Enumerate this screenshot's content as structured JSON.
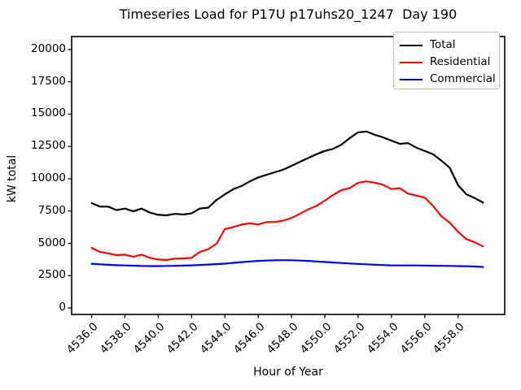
{
  "title": "Timeseries Load for P17U p17uhs20_1247  Day 190",
  "xlabel": "Hour of Year",
  "ylabel": "kW total",
  "legend": {
    "position": "upper right",
    "items": [
      {
        "label": "Total",
        "color": "#000000"
      },
      {
        "label": "Residential",
        "color": "#ff0000"
      },
      {
        "label": "Commercial",
        "color": "#0000ff"
      }
    ]
  },
  "chart_data": {
    "type": "line",
    "title": "Timeseries Load for P17U p17uhs20_1247  Day 190",
    "xlabel": "Hour of Year",
    "ylabel": "kW total",
    "grid": false,
    "legend_position": "upper right",
    "xlim": [
      4534.8,
      4560.8
    ],
    "ylim": [
      -500,
      21000
    ],
    "xticks": [
      {
        "value": 4536,
        "label": "4536.0"
      },
      {
        "value": 4538,
        "label": "4538.0"
      },
      {
        "value": 4540,
        "label": "4540.0"
      },
      {
        "value": 4542,
        "label": "4542.0"
      },
      {
        "value": 4544,
        "label": "4544.0"
      },
      {
        "value": 4546,
        "label": "4546.0"
      },
      {
        "value": 4548,
        "label": "4548.0"
      },
      {
        "value": 4550,
        "label": "4550.0"
      },
      {
        "value": 4552,
        "label": "4552.0"
      },
      {
        "value": 4554,
        "label": "4554.0"
      },
      {
        "value": 4556,
        "label": "4556.0"
      },
      {
        "value": 4558,
        "label": "4558.0"
      }
    ],
    "yticks": [
      {
        "value": 0,
        "label": "0"
      },
      {
        "value": 2500,
        "label": "2500"
      },
      {
        "value": 5000,
        "label": "5000"
      },
      {
        "value": 7500,
        "label": "7500"
      },
      {
        "value": 10000,
        "label": "10000"
      },
      {
        "value": 12500,
        "label": "12500"
      },
      {
        "value": 15000,
        "label": "15000"
      },
      {
        "value": 17500,
        "label": "17500"
      },
      {
        "value": 20000,
        "label": "20000"
      }
    ],
    "x": [
      4536.0,
      4536.5,
      4537.0,
      4537.5,
      4538.0,
      4538.5,
      4539.0,
      4539.5,
      4540.0,
      4540.5,
      4541.0,
      4541.5,
      4542.0,
      4542.5,
      4543.0,
      4543.5,
      4544.0,
      4544.5,
      4545.0,
      4545.5,
      4546.0,
      4546.5,
      4547.0,
      4547.5,
      4548.0,
      4548.5,
      4549.0,
      4549.5,
      4550.0,
      4550.5,
      4551.0,
      4551.5,
      4552.0,
      4552.5,
      4553.0,
      4553.5,
      4554.0,
      4554.5,
      4555.0,
      4555.5,
      4556.0,
      4556.5,
      4557.0,
      4557.5,
      4558.0,
      4558.5,
      4559.0,
      4559.5
    ],
    "series": [
      {
        "name": "Total",
        "color": "#000000",
        "values": [
          8110,
          7840,
          7840,
          7570,
          7690,
          7480,
          7690,
          7380,
          7210,
          7170,
          7280,
          7230,
          7320,
          7700,
          7760,
          8360,
          8790,
          9190,
          9440,
          9800,
          10100,
          10300,
          10500,
          10700,
          11000,
          11300,
          11600,
          11900,
          12150,
          12310,
          12640,
          13150,
          13590,
          13650,
          13400,
          13200,
          12950,
          12700,
          12750,
          12400,
          12150,
          11890,
          11400,
          10840,
          9500,
          8800,
          8500,
          8150
        ]
      },
      {
        "name": "Residential",
        "color": "#ff0000",
        "values": [
          4650,
          4340,
          4230,
          4090,
          4130,
          3960,
          4130,
          3880,
          3750,
          3710,
          3820,
          3830,
          3880,
          4340,
          4550,
          4970,
          6100,
          6260,
          6450,
          6550,
          6460,
          6650,
          6650,
          6760,
          6960,
          7280,
          7630,
          7900,
          8300,
          8740,
          9120,
          9280,
          9690,
          9800,
          9690,
          9540,
          9200,
          9260,
          8850,
          8700,
          8540,
          7900,
          7100,
          6600,
          5900,
          5330,
          5080,
          4760
        ]
      },
      {
        "name": "Commercial",
        "color": "#0000ff",
        "values": [
          3420,
          3380,
          3340,
          3310,
          3290,
          3270,
          3250,
          3240,
          3240,
          3250,
          3260,
          3280,
          3300,
          3330,
          3360,
          3390,
          3430,
          3490,
          3550,
          3600,
          3640,
          3670,
          3690,
          3700,
          3690,
          3670,
          3640,
          3600,
          3560,
          3520,
          3480,
          3440,
          3410,
          3380,
          3350,
          3320,
          3300,
          3290,
          3290,
          3290,
          3280,
          3270,
          3260,
          3250,
          3240,
          3230,
          3210,
          3170
        ]
      }
    ]
  }
}
